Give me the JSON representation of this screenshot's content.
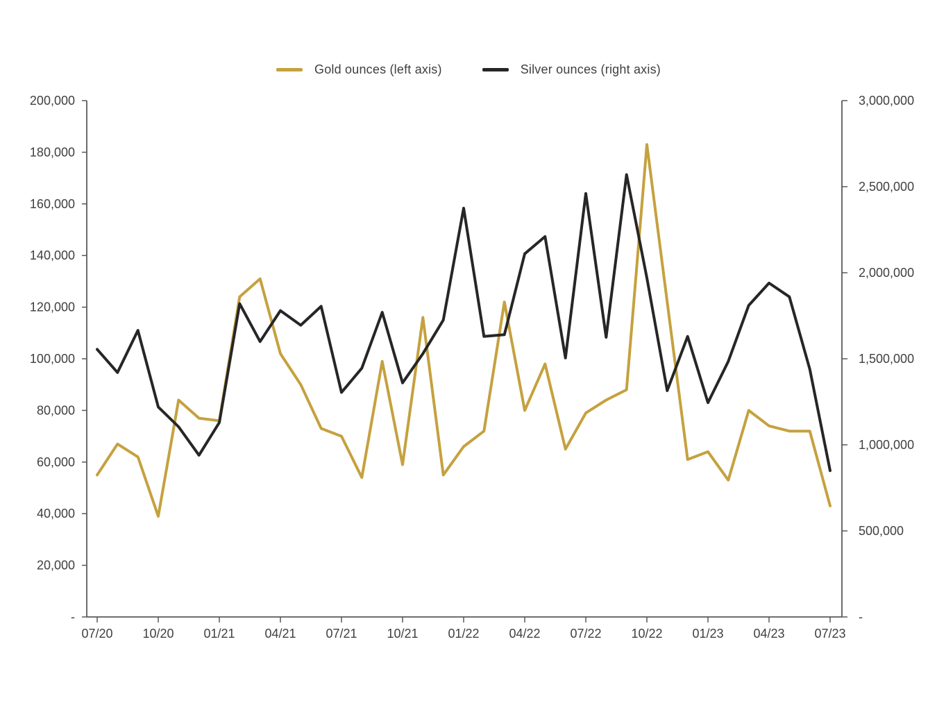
{
  "page": {
    "background": "#ffffff"
  },
  "legend": {
    "items": [
      {
        "label": "Gold ounces (left axis)",
        "color": "#C5A13F"
      },
      {
        "label": "Silver ounces (right axis)",
        "color": "#262626"
      }
    ]
  },
  "chart_data": {
    "type": "line",
    "title": "",
    "xlabel": "",
    "ylabel_left": "",
    "ylabel_right": "",
    "grid": false,
    "legend_position": "top",
    "categories": [
      "07/20",
      "08/20",
      "09/20",
      "10/20",
      "11/20",
      "12/20",
      "01/21",
      "02/21",
      "03/21",
      "04/21",
      "05/21",
      "06/21",
      "07/21",
      "08/21",
      "09/21",
      "10/21",
      "11/21",
      "12/21",
      "01/22",
      "02/22",
      "03/22",
      "04/22",
      "05/22",
      "06/22",
      "07/22",
      "08/22",
      "09/22",
      "10/22",
      "11/22",
      "12/22",
      "01/23",
      "02/23",
      "03/23",
      "04/23",
      "05/23",
      "06/23",
      "07/23"
    ],
    "x_tick_labels": [
      "07/20",
      "10/20",
      "01/21",
      "04/21",
      "07/21",
      "10/21",
      "01/22",
      "04/22",
      "07/22",
      "10/22",
      "01/23",
      "04/23",
      "07/23"
    ],
    "series": [
      {
        "name": "Gold ounces (left axis)",
        "axis": "left",
        "color": "#C5A13F",
        "values": [
          55000,
          67000,
          62000,
          39000,
          84000,
          77000,
          76000,
          124000,
          131000,
          102000,
          90000,
          73000,
          70000,
          54000,
          99000,
          59000,
          116000,
          55000,
          66000,
          72000,
          122000,
          80000,
          98000,
          65000,
          79000,
          84000,
          88000,
          183000,
          122000,
          61000,
          64000,
          53000,
          80000,
          74000,
          72000,
          72000,
          43000
        ]
      },
      {
        "name": "Silver ounces (right axis)",
        "axis": "right",
        "color": "#262626",
        "values": [
          1555000,
          1420000,
          1665000,
          1220000,
          1105000,
          940000,
          1130000,
          1820000,
          1600000,
          1780000,
          1695000,
          1805000,
          1305000,
          1445000,
          1770000,
          1360000,
          1530000,
          1725000,
          2375000,
          1630000,
          1640000,
          2110000,
          2210000,
          1505000,
          2460000,
          1625000,
          2570000,
          1970000,
          1315000,
          1630000,
          1245000,
          1485000,
          1810000,
          1940000,
          1860000,
          1440000,
          850000
        ]
      }
    ],
    "left_axis": {
      "min": 0,
      "max": 200000,
      "step": 20000,
      "zero_label": "-"
    },
    "right_axis": {
      "min": 0,
      "max": 3000000,
      "step": 500000,
      "zero_label": "-"
    },
    "axis_color": "#595959",
    "text_color": "#3f3f3f"
  }
}
